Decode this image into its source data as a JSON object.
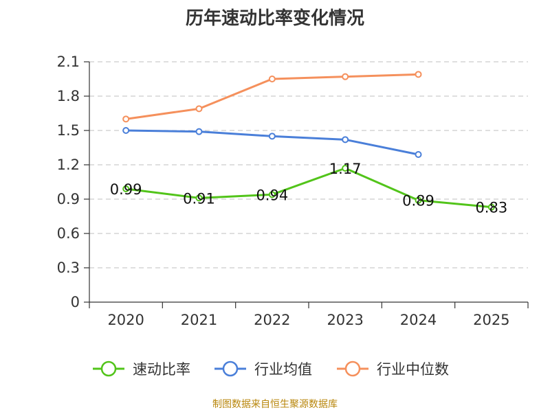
{
  "chart_data": {
    "type": "line",
    "title": "历年速动比率变化情况",
    "categories": [
      "2020",
      "2021",
      "2022",
      "2023",
      "2024",
      "2025"
    ],
    "ylim": [
      0,
      2.1
    ],
    "yticks": [
      "0",
      "0.3",
      "0.6",
      "0.9",
      "1.2",
      "1.5",
      "1.8",
      "2.1"
    ],
    "grid": true,
    "legend_position": "bottom",
    "series": [
      {
        "name": "速动比率",
        "color": "#52c41a",
        "values": [
          0.99,
          0.91,
          0.94,
          1.17,
          0.89,
          0.83
        ],
        "labels": [
          "0.99",
          "0.91",
          "0.94",
          "1.17",
          "0.89",
          "0.83"
        ]
      },
      {
        "name": "行业均值",
        "color": "#4a7fd9",
        "values": [
          1.5,
          1.49,
          1.45,
          1.42,
          1.29,
          null
        ]
      },
      {
        "name": "行业中位数",
        "color": "#f5905c",
        "values": [
          1.6,
          1.69,
          1.95,
          1.97,
          1.99,
          null
        ]
      }
    ]
  },
  "source_text": "制图数据来自恒生聚源数据库"
}
